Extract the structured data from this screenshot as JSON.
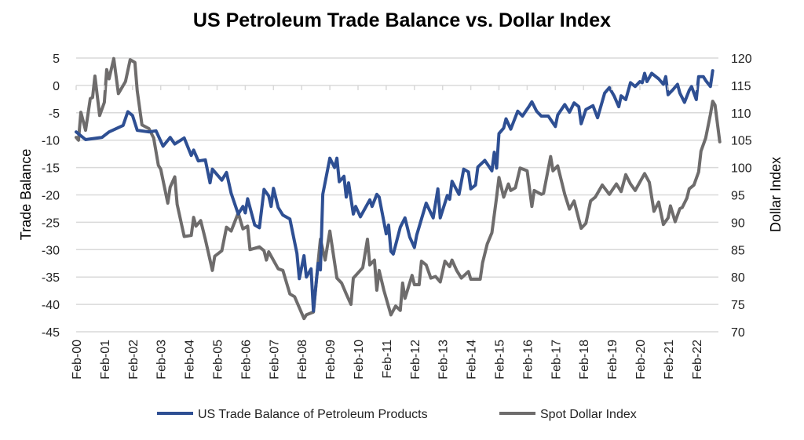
{
  "chart_data": {
    "type": "line",
    "title": "US Petroleum Trade Balance vs. Dollar Index",
    "ylabel": "Trade Balance",
    "y2label": "Dollar Index",
    "ylim": [
      -45,
      5
    ],
    "y2lim": [
      70,
      120
    ],
    "yticks": [
      5,
      0,
      -5,
      -10,
      -15,
      -20,
      -25,
      -30,
      -35,
      -40,
      -45
    ],
    "y2ticks": [
      120,
      115,
      110,
      105,
      100,
      95,
      90,
      85,
      80,
      75,
      70
    ],
    "xticks": [
      "Feb-00",
      "Feb-01",
      "Feb-02",
      "Feb-03",
      "Feb-04",
      "Feb-05",
      "Feb-06",
      "Feb-07",
      "Feb-08",
      "Feb-09",
      "Feb-10",
      "Feb-11",
      "Feb-12",
      "Feb-13",
      "Feb-14",
      "Feb-15",
      "Feb-16",
      "Feb-17",
      "Feb-18",
      "Feb-19",
      "Feb-20",
      "Feb-21",
      "Feb-22"
    ],
    "grid": true,
    "legend": "bottom",
    "series": [
      {
        "name": "US Trade Balance of Petroleum Products",
        "axis": "left",
        "color": "#2E4F93",
        "points": [
          [
            "2000-02",
            -8.5
          ],
          [
            "2000-06",
            -9.9
          ],
          [
            "2001-01",
            -9.5
          ],
          [
            "2001-04",
            -8.5
          ],
          [
            "2001-10",
            -7.3
          ],
          [
            "2001-12",
            -4.8
          ],
          [
            "2002-02",
            -5.5
          ],
          [
            "2002-04",
            -8.2
          ],
          [
            "2002-09",
            -8.5
          ],
          [
            "2002-12",
            -8.3
          ],
          [
            "2003-03",
            -11.1
          ],
          [
            "2003-06",
            -9.5
          ],
          [
            "2003-08",
            -10.7
          ],
          [
            "2003-12",
            -9.6
          ],
          [
            "2004-03",
            -12.8
          ],
          [
            "2004-04",
            -11.8
          ],
          [
            "2004-06",
            -13.8
          ],
          [
            "2004-09",
            -13.6
          ],
          [
            "2004-11",
            -17.8
          ],
          [
            "2004-12",
            -15.3
          ],
          [
            "2005-04",
            -17.3
          ],
          [
            "2005-06",
            -15.9
          ],
          [
            "2005-08",
            -19.7
          ],
          [
            "2005-11",
            -23.5
          ],
          [
            "2006-01",
            -22.1
          ],
          [
            "2006-02",
            -23.3
          ],
          [
            "2006-03",
            -20.7
          ],
          [
            "2006-06",
            -25.5
          ],
          [
            "2006-08",
            -26
          ],
          [
            "2006-10",
            -19
          ],
          [
            "2006-12",
            -20.2
          ],
          [
            "2007-01",
            -22.1
          ],
          [
            "2007-02",
            -18.8
          ],
          [
            "2007-04",
            -22.3
          ],
          [
            "2007-06",
            -23.7
          ],
          [
            "2007-09",
            -24.4
          ],
          [
            "2007-12",
            -30.7
          ],
          [
            "2008-01",
            -35.3
          ],
          [
            "2008-03",
            -31.1
          ],
          [
            "2008-04",
            -35
          ],
          [
            "2008-06",
            -33.5
          ],
          [
            "2008-07",
            -41.2
          ],
          [
            "2008-09",
            -32.5
          ],
          [
            "2008-10",
            -33.7
          ],
          [
            "2008-11",
            -19.9
          ],
          [
            "2009-02",
            -13.3
          ],
          [
            "2009-04",
            -15
          ],
          [
            "2009-05",
            -13.3
          ],
          [
            "2009-06",
            -17.6
          ],
          [
            "2009-08",
            -16.6
          ],
          [
            "2009-09",
            -20.4
          ],
          [
            "2009-10",
            -17.8
          ],
          [
            "2009-12",
            -23.5
          ],
          [
            "2010-01",
            -22.1
          ],
          [
            "2010-03",
            -24
          ],
          [
            "2010-07",
            -20.9
          ],
          [
            "2010-08",
            -22.1
          ],
          [
            "2010-10",
            -19.9
          ],
          [
            "2010-11",
            -20.4
          ],
          [
            "2011-02",
            -27.1
          ],
          [
            "2011-03",
            -25.5
          ],
          [
            "2011-04",
            -30.3
          ],
          [
            "2011-05",
            -30.8
          ],
          [
            "2011-08",
            -25.9
          ],
          [
            "2011-10",
            -24.2
          ],
          [
            "2011-12",
            -27.7
          ],
          [
            "2012-02",
            -29.6
          ],
          [
            "2012-03",
            -27.3
          ],
          [
            "2012-07",
            -21.5
          ],
          [
            "2012-10",
            -24.2
          ],
          [
            "2012-12",
            -18.9
          ],
          [
            "2013-01",
            -24.2
          ],
          [
            "2013-04",
            -20.1
          ],
          [
            "2013-05",
            -20.8
          ],
          [
            "2013-06",
            -17.5
          ],
          [
            "2013-09",
            -19.9
          ],
          [
            "2013-11",
            -15.3
          ],
          [
            "2014-01",
            -15.8
          ],
          [
            "2014-02",
            -18.9
          ],
          [
            "2014-04",
            -18.2
          ],
          [
            "2014-05",
            -14.9
          ],
          [
            "2014-08",
            -13.7
          ],
          [
            "2014-11",
            -15.6
          ],
          [
            "2014-12",
            -12.2
          ],
          [
            "2015-01",
            -15.1
          ],
          [
            "2015-02",
            -8.8
          ],
          [
            "2015-04",
            -7.8
          ],
          [
            "2015-05",
            -6.1
          ],
          [
            "2015-07",
            -8.0
          ],
          [
            "2015-10",
            -4.7
          ],
          [
            "2015-12",
            -5.6
          ],
          [
            "2016-03",
            -3.7
          ],
          [
            "2016-04",
            -3.0
          ],
          [
            "2016-06",
            -4.7
          ],
          [
            "2016-08",
            -5.6
          ],
          [
            "2016-11",
            -5.6
          ],
          [
            "2017-02",
            -7.5
          ],
          [
            "2017-03",
            -5.4
          ],
          [
            "2017-06",
            -3.5
          ],
          [
            "2017-08",
            -4.9
          ],
          [
            "2017-10",
            -3.2
          ],
          [
            "2017-12",
            -3.9
          ],
          [
            "2018-01",
            -7.0
          ],
          [
            "2018-03",
            -4.4
          ],
          [
            "2018-06",
            -3.7
          ],
          [
            "2018-08",
            -5.9
          ],
          [
            "2018-11",
            -1.4
          ],
          [
            "2019-01",
            -0.4
          ],
          [
            "2019-03",
            -1.9
          ],
          [
            "2019-05",
            -3.9
          ],
          [
            "2019-06",
            -1.9
          ],
          [
            "2019-08",
            -2.6
          ],
          [
            "2019-10",
            0.5
          ],
          [
            "2019-12",
            -0.2
          ],
          [
            "2020-02",
            0.7
          ],
          [
            "2020-03",
            0.5
          ],
          [
            "2020-04",
            2.2
          ],
          [
            "2020-05",
            0.7
          ],
          [
            "2020-07",
            2.2
          ],
          [
            "2020-10",
            1.2
          ],
          [
            "2020-12",
            0.2
          ],
          [
            "2021-01",
            1.6
          ],
          [
            "2021-02",
            -1.7
          ],
          [
            "2021-04",
            -0.8
          ],
          [
            "2021-06",
            0.2
          ],
          [
            "2021-07",
            -1.4
          ],
          [
            "2021-09",
            -3.1
          ],
          [
            "2021-11",
            -0.9
          ],
          [
            "2021-12",
            -0.2
          ],
          [
            "2022-02",
            -2.6
          ],
          [
            "2022-03",
            1.6
          ],
          [
            "2022-05",
            1.6
          ],
          [
            "2022-06",
            0.9
          ],
          [
            "2022-08",
            -0.2
          ],
          [
            "2022-09",
            2.7
          ]
        ]
      },
      {
        "name": "Spot Dollar Index",
        "axis": "right",
        "color": "#6E6C6C",
        "points": [
          [
            "2000-02",
            105.5
          ],
          [
            "2000-03",
            105
          ],
          [
            "2000-04",
            110.1
          ],
          [
            "2000-06",
            106.8
          ],
          [
            "2000-08",
            112.6
          ],
          [
            "2000-09",
            112.8
          ],
          [
            "2000-10",
            116.7
          ],
          [
            "2000-12",
            109.5
          ],
          [
            "2001-02",
            111.9
          ],
          [
            "2001-03",
            117.9
          ],
          [
            "2001-04",
            116.2
          ],
          [
            "2001-06",
            119.9
          ],
          [
            "2001-08",
            113.5
          ],
          [
            "2001-11",
            115.7
          ],
          [
            "2002-01",
            119.7
          ],
          [
            "2002-03",
            119.2
          ],
          [
            "2002-04",
            114
          ],
          [
            "2002-06",
            107.8
          ],
          [
            "2002-09",
            107.1
          ],
          [
            "2002-11",
            105.4
          ],
          [
            "2003-01",
            100.4
          ],
          [
            "2003-02",
            99.7
          ],
          [
            "2003-05",
            93.5
          ],
          [
            "2003-06",
            96.4
          ],
          [
            "2003-08",
            98.3
          ],
          [
            "2003-09",
            93.3
          ],
          [
            "2003-12",
            87.4
          ],
          [
            "2004-03",
            87.6
          ],
          [
            "2004-04",
            90.9
          ],
          [
            "2004-05",
            89.3
          ],
          [
            "2004-07",
            90.3
          ],
          [
            "2004-09",
            86.9
          ],
          [
            "2004-12",
            81.2
          ],
          [
            "2005-01",
            83.8
          ],
          [
            "2005-04",
            84.8
          ],
          [
            "2005-06",
            89.1
          ],
          [
            "2005-08",
            88.4
          ],
          [
            "2005-11",
            91.7
          ],
          [
            "2006-01",
            88.8
          ],
          [
            "2006-03",
            89.3
          ],
          [
            "2006-04",
            85
          ],
          [
            "2006-08",
            85.5
          ],
          [
            "2006-10",
            84.8
          ],
          [
            "2006-11",
            83.1
          ],
          [
            "2006-12",
            84.6
          ],
          [
            "2007-04",
            81.5
          ],
          [
            "2007-06",
            81.2
          ],
          [
            "2007-09",
            76.9
          ],
          [
            "2007-11",
            76.4
          ],
          [
            "2008-03",
            72.4
          ],
          [
            "2008-04",
            73.1
          ],
          [
            "2008-07",
            73.6
          ],
          [
            "2008-09",
            82.6
          ],
          [
            "2008-10",
            86.9
          ],
          [
            "2008-12",
            83.1
          ],
          [
            "2009-02",
            88.4
          ],
          [
            "2009-05",
            79.8
          ],
          [
            "2009-07",
            78.9
          ],
          [
            "2009-09",
            76.9
          ],
          [
            "2009-11",
            75
          ],
          [
            "2009-12",
            79.8
          ],
          [
            "2010-04",
            81.7
          ],
          [
            "2010-06",
            86.9
          ],
          [
            "2010-07",
            82.2
          ],
          [
            "2010-09",
            83.1
          ],
          [
            "2010-10",
            77.6
          ],
          [
            "2010-11",
            81.2
          ],
          [
            "2011-01",
            77.6
          ],
          [
            "2011-04",
            73.1
          ],
          [
            "2011-06",
            74.7
          ],
          [
            "2011-08",
            73.9
          ],
          [
            "2011-09",
            78.9
          ],
          [
            "2011-10",
            76.1
          ],
          [
            "2012-01",
            80.3
          ],
          [
            "2012-02",
            78.6
          ],
          [
            "2012-04",
            78.6
          ],
          [
            "2012-05",
            82.9
          ],
          [
            "2012-07",
            82.2
          ],
          [
            "2012-09",
            79.8
          ],
          [
            "2012-11",
            80.1
          ],
          [
            "2013-01",
            79.1
          ],
          [
            "2013-03",
            82.9
          ],
          [
            "2013-05",
            81.9
          ],
          [
            "2013-06",
            83.1
          ],
          [
            "2013-08",
            81.2
          ],
          [
            "2013-10",
            79.8
          ],
          [
            "2014-01",
            81
          ],
          [
            "2014-02",
            79.6
          ],
          [
            "2014-06",
            79.6
          ],
          [
            "2014-07",
            82.6
          ],
          [
            "2014-09",
            86
          ],
          [
            "2014-11",
            88.1
          ],
          [
            "2015-01",
            94.6
          ],
          [
            "2015-02",
            98.2
          ],
          [
            "2015-04",
            94.6
          ],
          [
            "2015-06",
            97
          ],
          [
            "2015-07",
            95.8
          ],
          [
            "2015-09",
            96.3
          ],
          [
            "2015-11",
            99.9
          ],
          [
            "2016-02",
            99.4
          ],
          [
            "2016-04",
            92.9
          ],
          [
            "2016-05",
            95.8
          ],
          [
            "2016-08",
            95.1
          ],
          [
            "2016-09",
            95.3
          ],
          [
            "2016-12",
            102
          ],
          [
            "2017-01",
            99.4
          ],
          [
            "2017-03",
            100.3
          ],
          [
            "2017-06",
            95.1
          ],
          [
            "2017-08",
            92.4
          ],
          [
            "2017-10",
            93.9
          ],
          [
            "2018-01",
            88.9
          ],
          [
            "2018-03",
            89.8
          ],
          [
            "2018-05",
            93.9
          ],
          [
            "2018-07",
            94.6
          ],
          [
            "2018-10",
            96.8
          ],
          [
            "2019-01",
            95.1
          ],
          [
            "2019-04",
            97
          ],
          [
            "2019-06",
            95.6
          ],
          [
            "2019-08",
            98.7
          ],
          [
            "2019-10",
            97
          ],
          [
            "2019-12",
            95.8
          ],
          [
            "2020-04",
            98.9
          ],
          [
            "2020-06",
            97.3
          ],
          [
            "2020-08",
            92
          ],
          [
            "2020-10",
            93.7
          ],
          [
            "2020-12",
            89.6
          ],
          [
            "2021-02",
            90.8
          ],
          [
            "2021-03",
            93
          ],
          [
            "2021-05",
            90.1
          ],
          [
            "2021-07",
            92.5
          ],
          [
            "2021-08",
            92.7
          ],
          [
            "2021-10",
            94.4
          ],
          [
            "2021-11",
            96.1
          ],
          [
            "2022-01",
            96.8
          ],
          [
            "2022-03",
            99.2
          ],
          [
            "2022-04",
            103
          ],
          [
            "2022-06",
            105.4
          ],
          [
            "2022-08",
            109.7
          ],
          [
            "2022-09",
            112.1
          ],
          [
            "2022-10",
            111.4
          ],
          [
            "2022-12",
            104.7
          ]
        ]
      }
    ]
  }
}
